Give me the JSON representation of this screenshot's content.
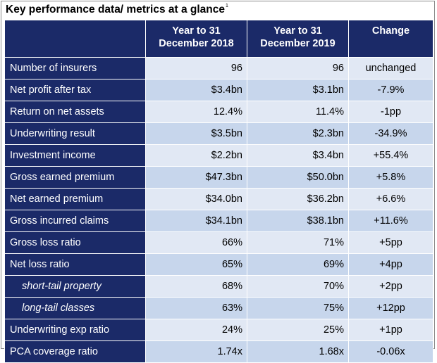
{
  "title": "Key performance data/ metrics at a glance",
  "title_footnote": "1",
  "columns": [
    "",
    "Year to 31 December 2018",
    "Year to 31 December 2019",
    "Change"
  ],
  "columns_lines": {
    "c2a": "Year to 31",
    "c2b": "December 2018",
    "c3a": "Year to 31",
    "c3b": "December 2019",
    "c4": "Change"
  },
  "rows": [
    {
      "metric": "Number of insurers",
      "y2018": "96",
      "y2019": "96",
      "change": "unchanged"
    },
    {
      "metric": "Net profit after tax",
      "y2018": "$3.4bn",
      "y2019": "$3.1bn",
      "change": "-7.9%"
    },
    {
      "metric": "Return on net assets",
      "y2018": "12.4%",
      "y2019": "11.4%",
      "change": "-1pp"
    },
    {
      "metric": "Underwriting result",
      "y2018": "$3.5bn",
      "y2019": "$2.3bn",
      "change": "-34.9%"
    },
    {
      "metric": "Investment income",
      "y2018": "$2.2bn",
      "y2019": "$3.4bn",
      "change": "+55.4%"
    },
    {
      "metric": "Gross earned premium",
      "y2018": "$47.3bn",
      "y2019": "$50.0bn",
      "change": "+5.8%"
    },
    {
      "metric": "Net earned premium",
      "y2018": "$34.0bn",
      "y2019": "$36.2bn",
      "change": "+6.6%"
    },
    {
      "metric": "Gross incurred claims",
      "y2018": "$34.1bn",
      "y2019": "$38.1bn",
      "change": "+11.6%"
    },
    {
      "metric": "Gross loss ratio",
      "y2018": "66%",
      "y2019": "71%",
      "change": "+5pp"
    },
    {
      "metric": "Net loss ratio",
      "y2018": "65%",
      "y2019": "69%",
      "change": "+4pp"
    },
    {
      "metric": "short-tail property",
      "y2018": "68%",
      "y2019": "70%",
      "change": "+2pp",
      "sub": true
    },
    {
      "metric": "long-tail classes",
      "y2018": "63%",
      "y2019": "75%",
      "change": "+12pp",
      "sub": true
    },
    {
      "metric": "Underwriting exp ratio",
      "y2018": "24%",
      "y2019": "25%",
      "change": "+1pp"
    },
    {
      "metric": "PCA coverage ratio",
      "y2018": "1.74x",
      "y2019": "1.68x",
      "change": "-0.06x"
    }
  ],
  "colors": {
    "header_bg": "#1b2a68",
    "cell_light": "#e1e8f4",
    "cell_dark": "#c7d6ec"
  }
}
